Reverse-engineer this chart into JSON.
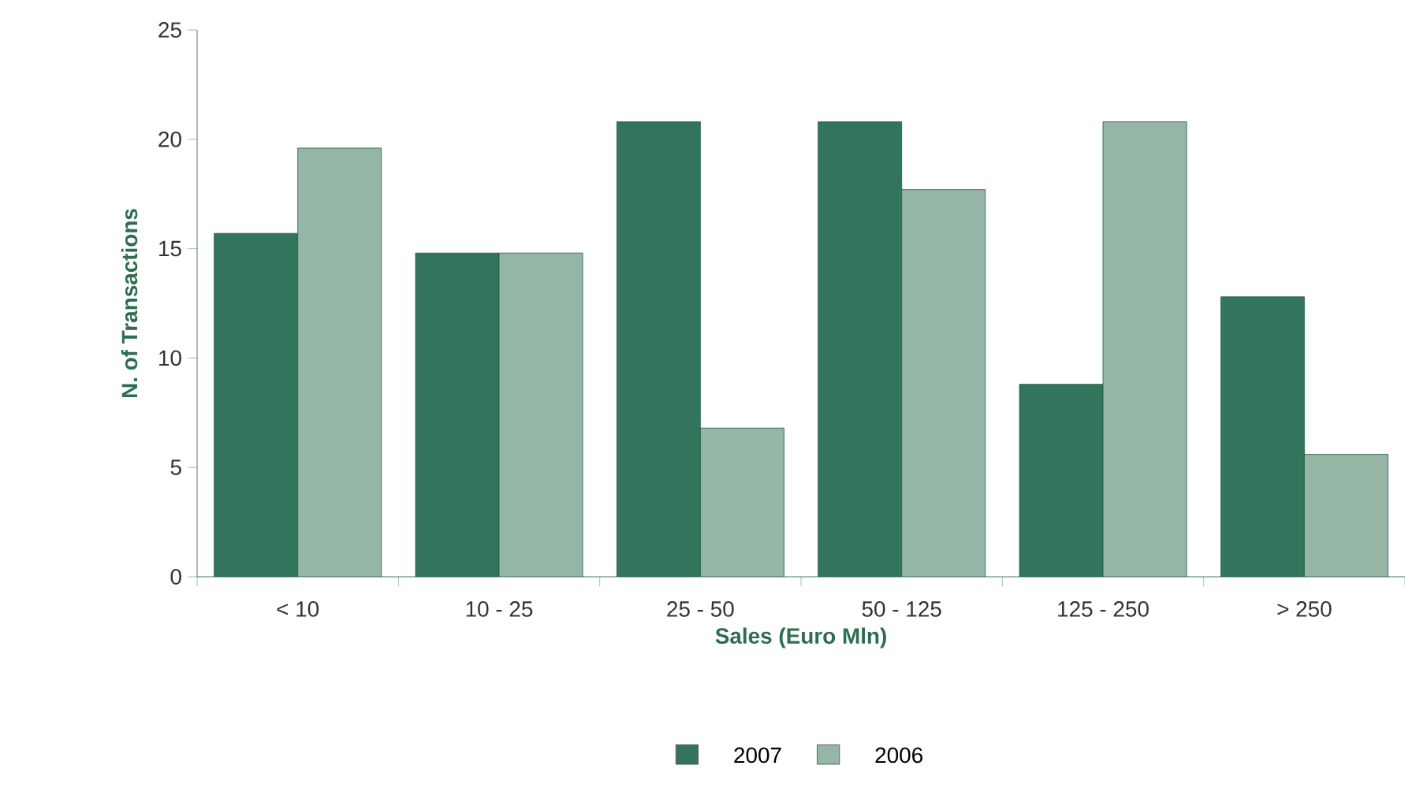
{
  "chart_data": {
    "type": "bar",
    "xlabel": "Sales (Euro Mln)",
    "ylabel": "N. of Transactions",
    "categories": [
      "< 10",
      "10 - 25",
      "25 - 50",
      "50 - 125",
      "125 - 250",
      "> 250"
    ],
    "series": [
      {
        "name": "2007",
        "color": "#33755c",
        "values": [
          15.7,
          14.8,
          20.8,
          20.8,
          8.8,
          12.8
        ]
      },
      {
        "name": "2006",
        "color": "#95b5a7",
        "values": [
          19.6,
          14.8,
          6.8,
          17.7,
          20.8,
          5.6
        ]
      }
    ],
    "ylim": [
      0,
      25
    ],
    "yticks": [
      0,
      5,
      10,
      15,
      20,
      25
    ],
    "grid": false,
    "legend": "bottom"
  }
}
